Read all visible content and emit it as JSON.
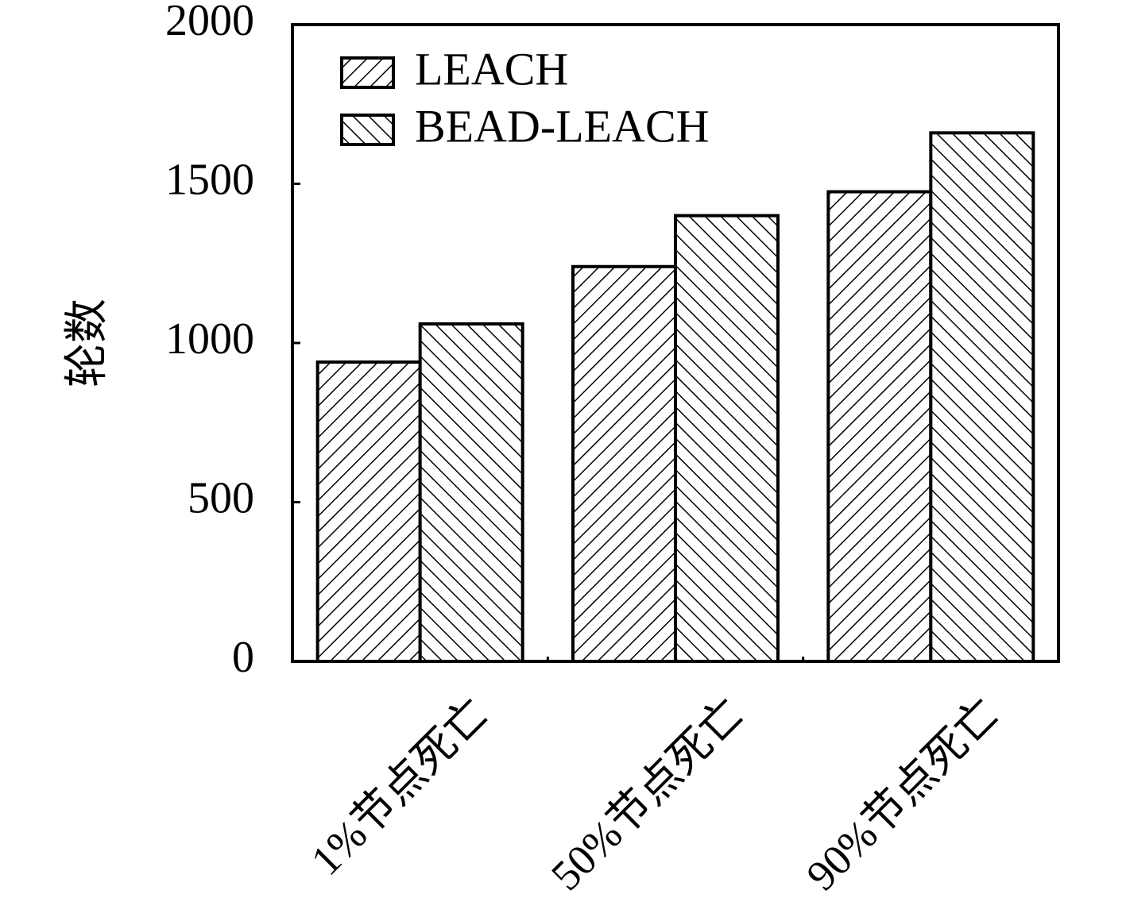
{
  "chart_data": {
    "type": "bar",
    "y_label": "轮数",
    "categories": [
      "1%节点死亡",
      "50%节点死亡",
      "90%节点死亡"
    ],
    "series": [
      {
        "name": "LEACH",
        "color": "#000000",
        "hatch": "/",
        "values": [
          940,
          1240,
          1475
        ]
      },
      {
        "name": "BEAD-LEACH",
        "color": "#000000",
        "hatch": "\\",
        "values": [
          1060,
          1400,
          1660
        ]
      }
    ],
    "ylim": [
      0,
      2000
    ],
    "yticks": [
      0,
      500,
      1000,
      1500,
      2000
    ],
    "legend": "upper left"
  }
}
